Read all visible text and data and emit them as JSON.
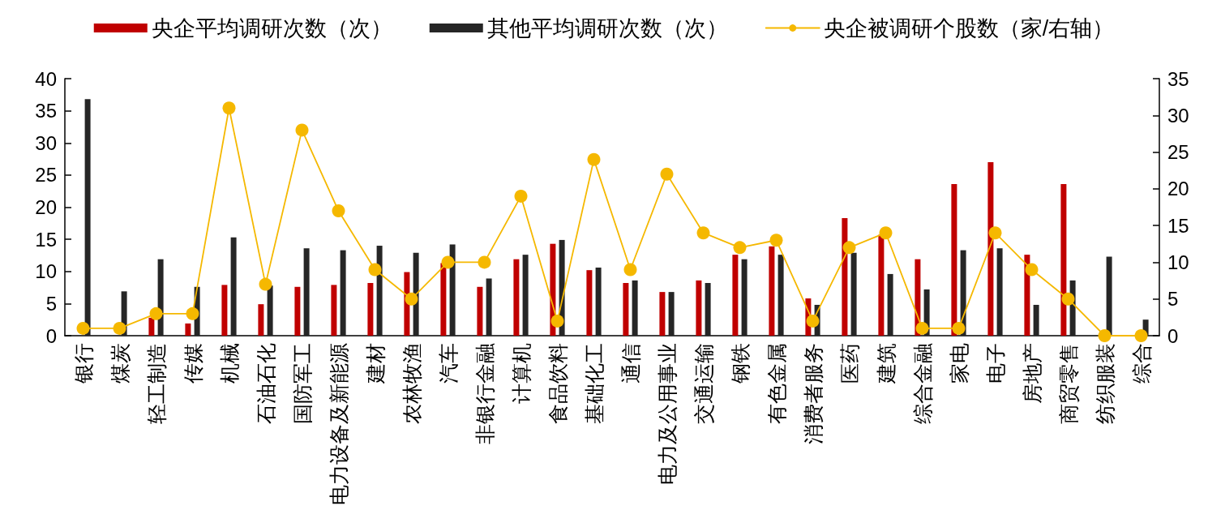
{
  "chart_data": {
    "type": "bar",
    "categories": [
      "银行",
      "煤炭",
      "轻工制造",
      "传媒",
      "机械",
      "石油石化",
      "国防军工",
      "电力设备及新能源",
      "建材",
      "农林牧渔",
      "汽车",
      "非银行金融",
      "计算机",
      "食品饮料",
      "基础化工",
      "通信",
      "电力及公用事业",
      "交通运输",
      "钢铁",
      "有色金属",
      "消费者服务",
      "医药",
      "建筑",
      "综合金融",
      "家电",
      "电子",
      "房地产",
      "商贸零售",
      "纺织服装",
      "综合"
    ],
    "series": [
      {
        "name": "央企平均调研次数（次）",
        "color": "#c00000",
        "values": [
          null,
          null,
          2.8,
          1.9,
          7.9,
          4.9,
          7.6,
          7.9,
          8.2,
          9.9,
          11.3,
          7.6,
          11.9,
          14.3,
          10.2,
          8.2,
          6.8,
          8.6,
          12.6,
          13.9,
          5.8,
          18.3,
          15.7,
          11.9,
          23.6,
          27.0,
          12.6,
          23.6,
          null,
          null
        ]
      },
      {
        "name": "其他平均调研次数（次）",
        "color": "#262626",
        "values": [
          36.8,
          6.9,
          11.9,
          7.6,
          15.3,
          7.8,
          13.6,
          13.3,
          14.0,
          12.9,
          14.2,
          8.9,
          12.6,
          14.9,
          10.6,
          8.6,
          6.8,
          8.2,
          11.9,
          12.6,
          4.8,
          12.9,
          9.6,
          7.2,
          13.3,
          13.6,
          4.8,
          8.6,
          12.3,
          2.5
        ]
      },
      {
        "name": "央企被调研个股数（家/右轴）",
        "color": "#f5b800",
        "type": "line",
        "axis": "y2",
        "values": [
          1,
          1,
          3,
          3,
          31,
          7,
          28,
          17,
          9,
          5,
          10,
          10,
          19,
          2,
          24,
          9,
          22,
          14,
          12,
          13,
          2,
          12,
          14,
          1,
          1,
          14,
          9,
          5,
          0,
          0
        ]
      }
    ],
    "ylim": [
      0,
      40
    ],
    "yticks": [
      0,
      5,
      10,
      15,
      20,
      25,
      30,
      35,
      40
    ],
    "y2lim": [
      0,
      35
    ],
    "y2ticks": [
      0,
      5,
      10,
      15,
      20,
      25,
      30,
      35
    ],
    "legend": "top",
    "marker": "circle"
  }
}
